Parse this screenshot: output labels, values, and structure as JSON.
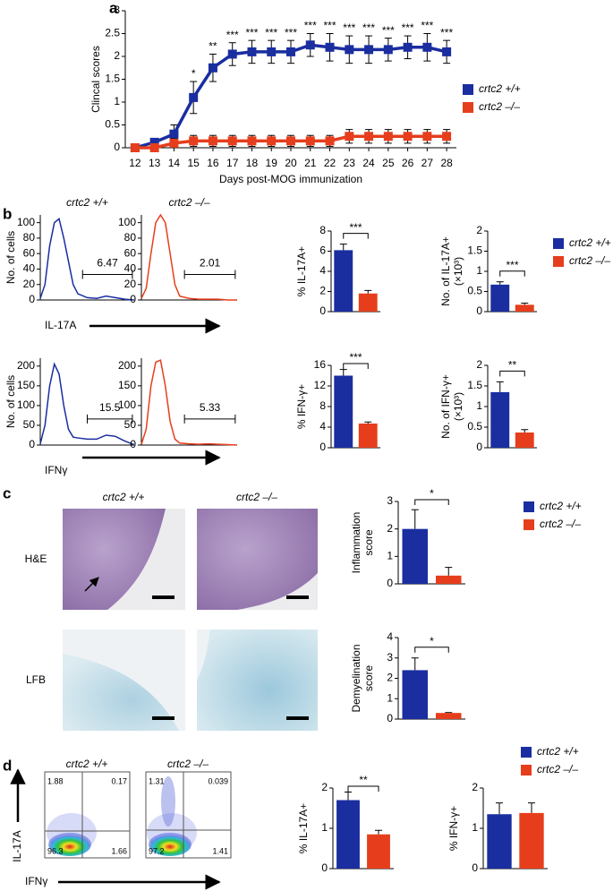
{
  "panel_labels": [
    "a",
    "b",
    "c",
    "d"
  ],
  "chart_data": [
    {
      "type": "line",
      "ylabel": "Clincal scores",
      "xlabel": "Days post-MOG immunization",
      "x": [
        12,
        13,
        14,
        15,
        16,
        17,
        18,
        19,
        20,
        21,
        22,
        23,
        24,
        25,
        26,
        27,
        28
      ],
      "xlim": [
        11.5,
        28.5
      ],
      "xticks": [
        12,
        13,
        14,
        15,
        16,
        17,
        18,
        19,
        20,
        21,
        22,
        23,
        24,
        25,
        26,
        27,
        28
      ],
      "ylim": [
        0,
        3
      ],
      "yticks": [
        0,
        0.5,
        1,
        1.5,
        2,
        2.5,
        3
      ],
      "marker": "square",
      "legend": "right",
      "series": [
        {
          "name": "crtc2 +/+",
          "color": "#1a2ea0",
          "values": [
            0,
            0.12,
            0.3,
            1.1,
            1.75,
            2.05,
            2.1,
            2.1,
            2.1,
            2.25,
            2.2,
            2.15,
            2.15,
            2.15,
            2.2,
            2.2,
            2.1
          ],
          "errors": [
            0,
            0.08,
            0.2,
            0.35,
            0.3,
            0.25,
            0.25,
            0.25,
            0.25,
            0.25,
            0.3,
            0.3,
            0.3,
            0.25,
            0.25,
            0.3,
            0.25
          ]
        },
        {
          "name": "crtc2 –/–",
          "color": "#e63e1c",
          "values": [
            0,
            0,
            0.1,
            0.15,
            0.15,
            0.15,
            0.15,
            0.15,
            0.15,
            0.15,
            0.15,
            0.25,
            0.25,
            0.25,
            0.25,
            0.25,
            0.25
          ],
          "errors": [
            0,
            0.05,
            0.1,
            0.12,
            0.12,
            0.12,
            0.12,
            0.12,
            0.12,
            0.12,
            0.12,
            0.15,
            0.15,
            0.15,
            0.15,
            0.15,
            0.15
          ]
        }
      ],
      "annotations": [
        {
          "x": 15,
          "text": "*"
        },
        {
          "x": 16,
          "text": "**"
        },
        {
          "x": 17,
          "text": "***"
        },
        {
          "x": 18,
          "text": "***"
        },
        {
          "x": 19,
          "text": "***"
        },
        {
          "x": 20,
          "text": "***"
        },
        {
          "x": 21,
          "text": "***"
        },
        {
          "x": 22,
          "text": "***"
        },
        {
          "x": 23,
          "text": "***"
        },
        {
          "x": 24,
          "text": "***"
        },
        {
          "x": 25,
          "text": "***"
        },
        {
          "x": 26,
          "text": "***"
        },
        {
          "x": 27,
          "text": "***"
        },
        {
          "x": 28,
          "text": "***"
        }
      ]
    },
    {
      "type": "line",
      "title": "crtc2 +/+",
      "ylabel": "No. of cells",
      "xlabel": "IL-17A",
      "xlim": [
        0,
        1
      ],
      "ylim": [
        0,
        110
      ],
      "yticks": [
        0,
        20,
        40,
        60,
        80,
        100
      ],
      "x": [
        0,
        0.05,
        0.1,
        0.15,
        0.2,
        0.25,
        0.3,
        0.35,
        0.4,
        0.5,
        0.6,
        0.7,
        0.8,
        0.9,
        1
      ],
      "series": [
        {
          "color": "#1a2ea0",
          "values": [
            2,
            20,
            70,
            100,
            105,
            80,
            50,
            20,
            8,
            3,
            2,
            5,
            3,
            1,
            0
          ]
        }
      ],
      "gate": {
        "x": [
          0.45,
          0.98
        ],
        "label": 6.47
      }
    },
    {
      "type": "line",
      "title": "crtc2 –/–",
      "xlim": [
        0,
        1
      ],
      "ylim": [
        0,
        110
      ],
      "yticks": [
        0,
        20,
        40,
        60,
        80,
        100
      ],
      "x": [
        0,
        0.05,
        0.1,
        0.15,
        0.2,
        0.25,
        0.3,
        0.35,
        0.4,
        0.5,
        0.6,
        0.7,
        0.8,
        0.9,
        1
      ],
      "series": [
        {
          "color": "#e63e1c",
          "values": [
            2,
            15,
            60,
            100,
            110,
            100,
            60,
            20,
            5,
            2,
            1,
            1,
            1,
            0,
            0
          ]
        }
      ],
      "gate": {
        "x": [
          0.45,
          0.98
        ],
        "label": 2.01
      }
    },
    {
      "type": "bar",
      "ylabel": [
        "% IL-17A+"
      ],
      "ylim": [
        0,
        8
      ],
      "yticks": [
        0,
        2,
        4,
        6,
        8
      ],
      "significance": "***",
      "series": [
        {
          "color": "#1a2ea0",
          "values": [
            6.1
          ],
          "errors": [
            0.6
          ]
        },
        {
          "color": "#e63e1c",
          "values": [
            1.8
          ],
          "errors": [
            0.3
          ]
        }
      ]
    },
    {
      "type": "bar",
      "ylabel": [
        "No. of IL-17A+",
        "(×10³)"
      ],
      "ylim": [
        0,
        2
      ],
      "yticks": [
        0,
        0.5,
        1,
        1.5,
        2
      ],
      "significance": "***",
      "legend": "right",
      "series": [
        {
          "name": "crtc2 +/+",
          "color": "#1a2ea0",
          "values": [
            0.67
          ],
          "errors": [
            0.07
          ]
        },
        {
          "name": "crtc2 –/–",
          "color": "#e63e1c",
          "values": [
            0.17
          ],
          "errors": [
            0.04
          ]
        }
      ]
    },
    {
      "type": "line",
      "ylabel": "No. of cells",
      "xlabel": "IFNγ",
      "xlim": [
        0,
        1
      ],
      "ylim": [
        0,
        220
      ],
      "yticks": [
        0,
        50,
        100,
        150,
        200
      ],
      "x": [
        0,
        0.05,
        0.1,
        0.15,
        0.2,
        0.25,
        0.3,
        0.35,
        0.4,
        0.5,
        0.6,
        0.7,
        0.8,
        0.9,
        1
      ],
      "series": [
        {
          "color": "#1a2ea0",
          "values": [
            3,
            50,
            150,
            205,
            180,
            100,
            40,
            20,
            18,
            15,
            15,
            25,
            22,
            10,
            1
          ]
        }
      ],
      "gate": {
        "x": [
          0.5,
          0.98
        ],
        "label": 15.5
      }
    },
    {
      "type": "line",
      "xlim": [
        0,
        1
      ],
      "ylim": [
        0,
        220
      ],
      "yticks": [
        0,
        50,
        100,
        150,
        200
      ],
      "x": [
        0,
        0.05,
        0.1,
        0.15,
        0.2,
        0.25,
        0.3,
        0.35,
        0.4,
        0.5,
        0.6,
        0.7,
        0.8,
        0.9,
        1
      ],
      "series": [
        {
          "color": "#e63e1c",
          "values": [
            2,
            40,
            150,
            210,
            215,
            150,
            60,
            15,
            5,
            3,
            2,
            3,
            2,
            1,
            0
          ]
        }
      ],
      "gate": {
        "x": [
          0.45,
          0.98
        ],
        "label": 5.33
      }
    },
    {
      "type": "bar",
      "ylabel": [
        "% IFN-γ+"
      ],
      "ylim": [
        0,
        16
      ],
      "yticks": [
        0,
        4,
        8,
        12,
        16
      ],
      "significance": "***",
      "series": [
        {
          "color": "#1a2ea0",
          "values": [
            14
          ],
          "errors": [
            1.2
          ]
        },
        {
          "color": "#e63e1c",
          "values": [
            4.7
          ],
          "errors": [
            0.3
          ]
        }
      ]
    },
    {
      "type": "bar",
      "ylabel": [
        "No. of IFN-γ+",
        "(×10³)"
      ],
      "ylim": [
        0,
        2
      ],
      "yticks": [
        0,
        0.5,
        1,
        1.5,
        2
      ],
      "significance": "**",
      "series": [
        {
          "color": "#1a2ea0",
          "values": [
            1.35
          ],
          "errors": [
            0.25
          ]
        },
        {
          "color": "#e63e1c",
          "values": [
            0.37
          ],
          "errors": [
            0.07
          ]
        }
      ]
    },
    {
      "type": "bar",
      "ylabel": [
        "Inflammation",
        "score"
      ],
      "ylim": [
        0,
        3
      ],
      "yticks": [
        0,
        1,
        2,
        3
      ],
      "significance": "*",
      "legend": "right",
      "series": [
        {
          "name": "crtc2 +/+",
          "color": "#1a2ea0",
          "values": [
            2.0
          ],
          "errors": [
            0.7
          ]
        },
        {
          "name": "crtc2 –/–",
          "color": "#e63e1c",
          "values": [
            0.3
          ],
          "errors": [
            0.3
          ]
        }
      ]
    },
    {
      "type": "bar",
      "ylabel": [
        "Demyelination",
        "score"
      ],
      "ylim": [
        0,
        4
      ],
      "yticks": [
        0,
        1,
        2,
        3,
        4
      ],
      "significance": "*",
      "series": [
        {
          "color": "#1a2ea0",
          "values": [
            2.4
          ],
          "errors": [
            0.6
          ]
        },
        {
          "color": "#e63e1c",
          "values": [
            0.3
          ],
          "errors": [
            0.02
          ]
        }
      ]
    },
    {
      "type": "bar",
      "ylabel": [
        "% IL-17A+"
      ],
      "ylim": [
        0,
        2
      ],
      "yticks": [
        0,
        1,
        2
      ],
      "significance": "**",
      "series": [
        {
          "color": "#1a2ea0",
          "values": [
            1.7
          ],
          "errors": [
            0.2
          ]
        },
        {
          "color": "#e63e1c",
          "values": [
            0.85
          ],
          "errors": [
            0.1
          ]
        }
      ]
    },
    {
      "type": "bar",
      "ylabel": [
        "% IFN-γ+"
      ],
      "ylim": [
        0,
        2
      ],
      "yticks": [
        0,
        1,
        2
      ],
      "legend": "top right",
      "series": [
        {
          "name": "crtc2 +/+",
          "color": "#1a2ea0",
          "values": [
            1.35
          ],
          "errors": [
            0.28
          ]
        },
        {
          "name": "crtc2 –/–",
          "color": "#e63e1c",
          "values": [
            1.38
          ],
          "errors": [
            0.25
          ]
        }
      ]
    }
  ],
  "micrographs": {
    "columns": [
      "crtc2 +/+",
      "crtc2 –/–"
    ],
    "rows": [
      "H&E",
      "LFB"
    ]
  },
  "dot_plots": {
    "titles": [
      "crtc2 +/+",
      "crtc2 –/–"
    ],
    "y_label": "IL-17A",
    "x_label": "IFNγ",
    "quadrants": [
      [
        1.88,
        0.17,
        96.3,
        1.66
      ],
      [
        1.31,
        0.039,
        97.2,
        1.41
      ]
    ]
  }
}
